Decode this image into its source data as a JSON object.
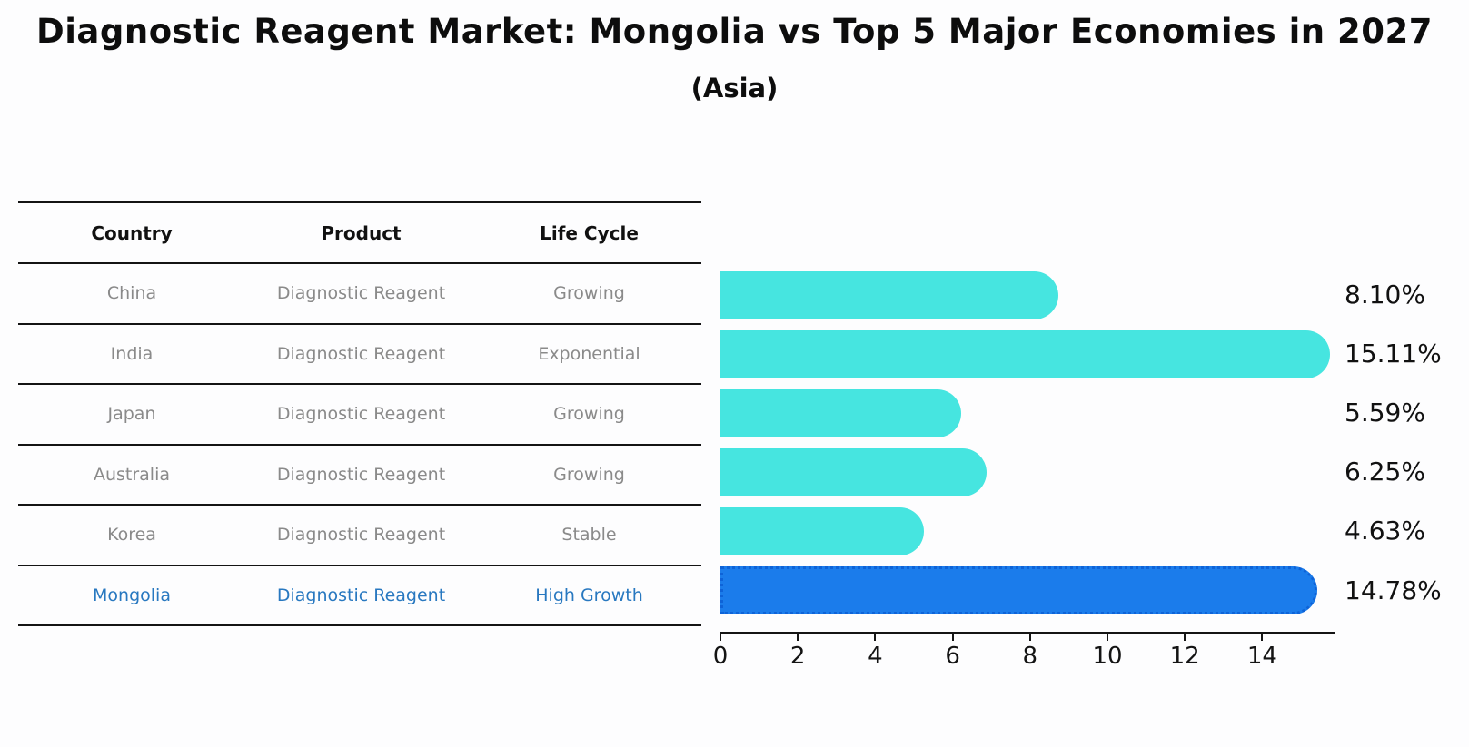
{
  "title": "Diagnostic Reagent Market: Mongolia vs Top 5 Major Economies in 2027",
  "subtitle": "(Asia)",
  "table": {
    "headers": [
      "Country",
      "Product",
      "Life Cycle"
    ],
    "rows": [
      {
        "country": "China",
        "product": "Diagnostic Reagent",
        "life_cycle": "Growing",
        "highlight": false
      },
      {
        "country": "India",
        "product": "Diagnostic Reagent",
        "life_cycle": "Exponential",
        "highlight": false
      },
      {
        "country": "Japan",
        "product": "Diagnostic Reagent",
        "life_cycle": "Growing",
        "highlight": false
      },
      {
        "country": "Australia",
        "product": "Diagnostic Reagent",
        "life_cycle": "Growing",
        "highlight": false
      },
      {
        "country": "Korea",
        "product": "Diagnostic Reagent",
        "life_cycle": "Stable",
        "highlight": false
      },
      {
        "country": "Mongolia",
        "product": "Diagnostic Reagent",
        "life_cycle": "High Growth",
        "highlight": true
      }
    ]
  },
  "chart_data": {
    "type": "bar",
    "orientation": "horizontal",
    "title": "Diagnostic Reagent Market: Mongolia vs Top 5 Major Economies in 2027",
    "subtitle": "(Asia)",
    "categories": [
      "China",
      "India",
      "Japan",
      "Australia",
      "Korea",
      "Mongolia"
    ],
    "values": [
      8.1,
      15.11,
      5.59,
      6.25,
      4.63,
      14.78
    ],
    "value_labels": [
      "8.10%",
      "15.11%",
      "5.59%",
      "6.25%",
      "4.63%",
      "14.78%"
    ],
    "highlight_index": 5,
    "xlabel": "",
    "ylabel": "",
    "xlim": [
      0,
      15.9
    ],
    "x_ticks": [
      0,
      2,
      4,
      6,
      8,
      10,
      12,
      14
    ],
    "grid": false,
    "legend": false,
    "bar_color": "#46e5e0",
    "highlight_bar_color": "#1b7ceb",
    "highlight_edge_style": "dotted"
  },
  "colors": {
    "bar_cyan": "#46e5e0",
    "bar_blue": "#1b7ceb",
    "highlight_text": "#2878c0",
    "row_text": "#8a8a8a",
    "line": "#141414",
    "background": "#fdfdfe"
  }
}
